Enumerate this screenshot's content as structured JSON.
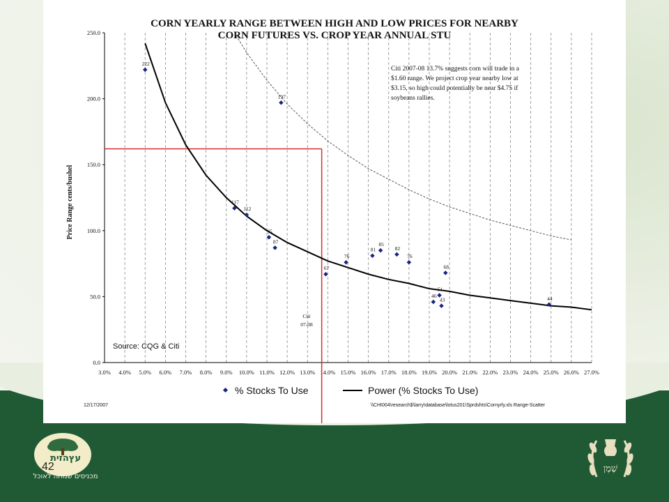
{
  "slide": {
    "page_number": "42",
    "left_logo_text": "עץהזית",
    "left_tagline": "מכניסים שמחה לאוכל",
    "right_logo_text": "שֶׁמֶן"
  },
  "chart_data": {
    "type": "scatter",
    "title_lines": [
      "CORN YEARLY RANGE BETWEEN HIGH AND LOW PRICES FOR NEARBY",
      "CORN FUTURES VS. CROP YEAR ANNUAL STU"
    ],
    "ylabel": "Price Range cents/bushel",
    "xlabel": "",
    "xlim": [
      3.0,
      27.0
    ],
    "ylim": [
      0.0,
      250.0
    ],
    "x_ticks": [
      "3.0%",
      "4.0%",
      "5.0%",
      "6.0%",
      "7.0%",
      "8.0%",
      "9.0%",
      "10.0%",
      "11.0%",
      "12.0%",
      "13.0%",
      "14.0%",
      "15.0%",
      "16.0%",
      "17.0%",
      "18.0%",
      "19.0%",
      "20.0%",
      "21.0%",
      "22.0%",
      "23.0%",
      "24.0%",
      "25.0%",
      "26.0%",
      "27.0%"
    ],
    "y_ticks": [
      "0.0",
      "50.0",
      "100.0",
      "150.0",
      "200.0",
      "250.0"
    ],
    "grid": "vertical dashed",
    "legend_position": "bottom",
    "series": [
      {
        "name": "% Stocks To Use",
        "kind": "points",
        "color": "#1a237e",
        "points": [
          {
            "x": 5.0,
            "y": 222,
            "label": "222"
          },
          {
            "x": 11.7,
            "y": 197,
            "label": "197"
          },
          {
            "x": 9.4,
            "y": 117,
            "label": "117"
          },
          {
            "x": 10.0,
            "y": 112,
            "label": "112"
          },
          {
            "x": 11.1,
            "y": 95,
            "label": "95"
          },
          {
            "x": 11.4,
            "y": 87,
            "label": "87"
          },
          {
            "x": 13.9,
            "y": 67,
            "label": "67"
          },
          {
            "x": 14.9,
            "y": 76,
            "label": "76"
          },
          {
            "x": 16.2,
            "y": 81,
            "label": "81"
          },
          {
            "x": 16.6,
            "y": 85,
            "label": "85"
          },
          {
            "x": 17.4,
            "y": 82,
            "label": "82"
          },
          {
            "x": 18.0,
            "y": 76,
            "label": "76"
          },
          {
            "x": 19.8,
            "y": 68,
            "label": "68"
          },
          {
            "x": 19.5,
            "y": 51,
            "label": "51"
          },
          {
            "x": 19.2,
            "y": 46,
            "label": "46"
          },
          {
            "x": 19.6,
            "y": 43,
            "label": "43"
          },
          {
            "x": 24.9,
            "y": 44,
            "label": "44"
          }
        ]
      },
      {
        "name": "Power (% Stocks To Use)",
        "kind": "power_curve",
        "color": "#000000",
        "x": [
          5.0,
          6.0,
          7.0,
          8.0,
          9.0,
          10.0,
          11.0,
          12.0,
          13.0,
          14.0,
          15.0,
          16.0,
          17.0,
          18.0,
          19.0,
          20.0,
          21.0,
          22.0,
          23.0,
          24.0,
          25.0,
          26.0,
          27.0
        ],
        "y": [
          242,
          197,
          165,
          142,
          125,
          111,
          100,
          91,
          84,
          77,
          72,
          67,
          63,
          60,
          56,
          54,
          51,
          49,
          47,
          45,
          43,
          42,
          40
        ]
      },
      {
        "kind": "dashed_power_curve",
        "color": "#555555",
        "x": [
          9.4,
          10.0,
          11.0,
          12.0,
          13.0,
          14.0,
          15.0,
          16.0,
          17.0,
          18.0,
          19.0,
          20.0,
          21.0,
          22.0,
          23.0,
          24.0,
          25.0,
          26.0
        ],
        "y": [
          250,
          235,
          214,
          196,
          181,
          168,
          157,
          147,
          139,
          131,
          124,
          118,
          113,
          108,
          104,
          100,
          96,
          93
        ]
      }
    ],
    "reference_lines": {
      "vertical_x": 13.7,
      "horizontal_y": 162,
      "color": "#d32f2f"
    },
    "annotation": [
      "Citi 2007-08 13.7% suggests corn will trade in a",
      "$1.60 range. We project crop year nearby low at",
      "$3.15, so high could potentially be near $4.75 if",
      "soybeans rallies."
    ],
    "citi_label": [
      "Citi",
      "07-08"
    ],
    "source": "Source: CQG & Citi",
    "footer_left": "12/17/2007",
    "footer_right": "\\\\CHI004\\research$\\larry\\database\\lotus201\\Sprdshts\\Cornyrly.xls  Range-Scatter"
  }
}
